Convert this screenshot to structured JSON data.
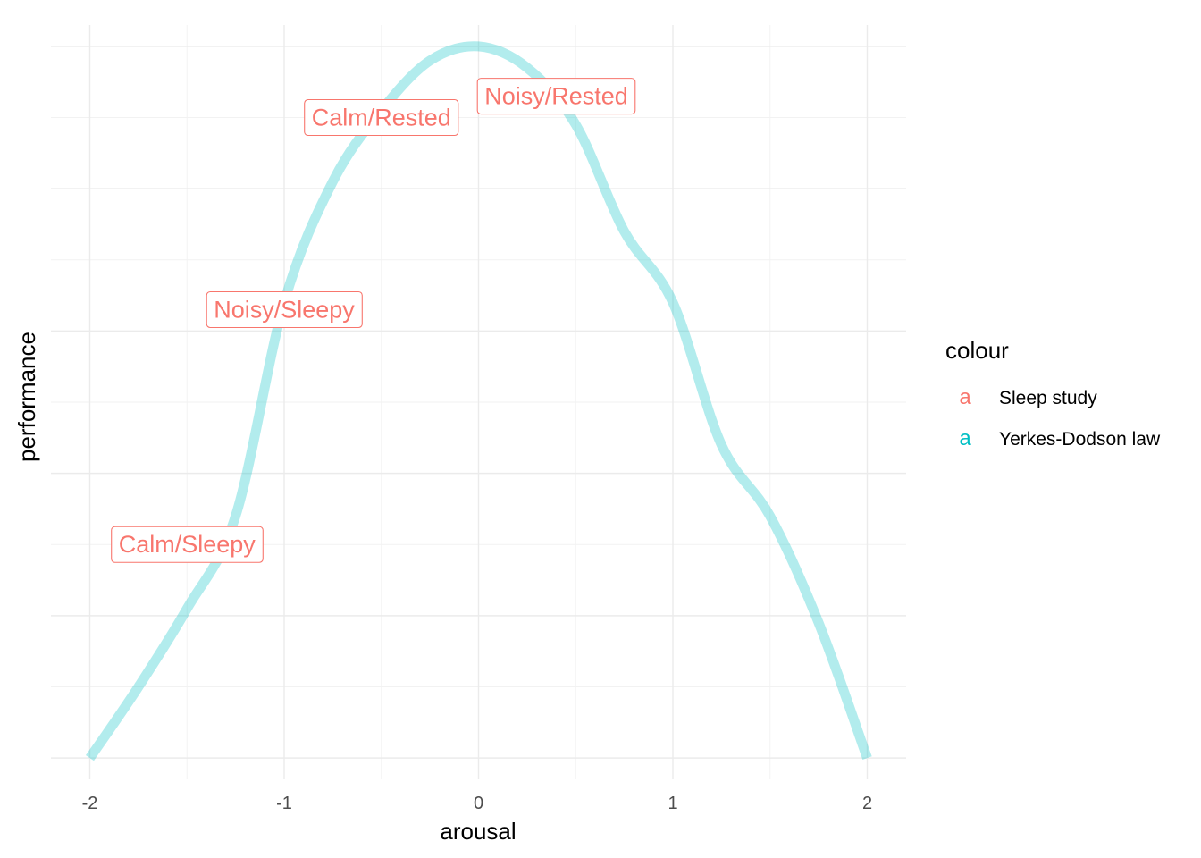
{
  "chart_data": {
    "type": "line",
    "xlabel": "arousal",
    "ylabel": "performance",
    "xlim": [
      -2.2,
      2.2
    ],
    "ylim": [
      -0.03,
      1.03
    ],
    "x_ticks": [
      -2,
      -1,
      0,
      1,
      2
    ],
    "x_tick_labels": [
      "-2",
      "-1",
      "0",
      "1",
      "2"
    ],
    "y_tick_labels_shown": false,
    "grid": true,
    "series": [
      {
        "name": "Yerkes-Dodson law",
        "color": "#00BFC4",
        "opacity": 0.3,
        "x": [
          -2.0,
          -1.75,
          -1.5,
          -1.25,
          -1.0,
          -0.75,
          -0.5,
          -0.25,
          0.0,
          0.25,
          0.5,
          0.75,
          1.0,
          1.25,
          1.5,
          1.75,
          2.0
        ],
        "y": [
          0.0,
          0.1,
          0.21,
          0.34,
          0.64,
          0.81,
          0.91,
          0.98,
          1.0,
          0.97,
          0.89,
          0.74,
          0.64,
          0.44,
          0.34,
          0.19,
          0.0
        ]
      },
      {
        "name": "Sleep study",
        "color": "#F8766D",
        "labels": [
          {
            "text": "Calm/Sleepy",
            "x": -1.5,
            "y": 0.3
          },
          {
            "text": "Noisy/Sleepy",
            "x": -1.0,
            "y": 0.63
          },
          {
            "text": "Calm/Rested",
            "x": -0.5,
            "y": 0.9
          },
          {
            "text": "Noisy/Rested",
            "x": 0.4,
            "y": 0.93
          }
        ]
      }
    ],
    "legend": {
      "title": "colour",
      "position": "right",
      "key_glyph": "a",
      "entries": [
        {
          "label": "Sleep study",
          "color": "#F8766D"
        },
        {
          "label": "Yerkes-Dodson law",
          "color": "#00BFC4"
        }
      ]
    }
  }
}
